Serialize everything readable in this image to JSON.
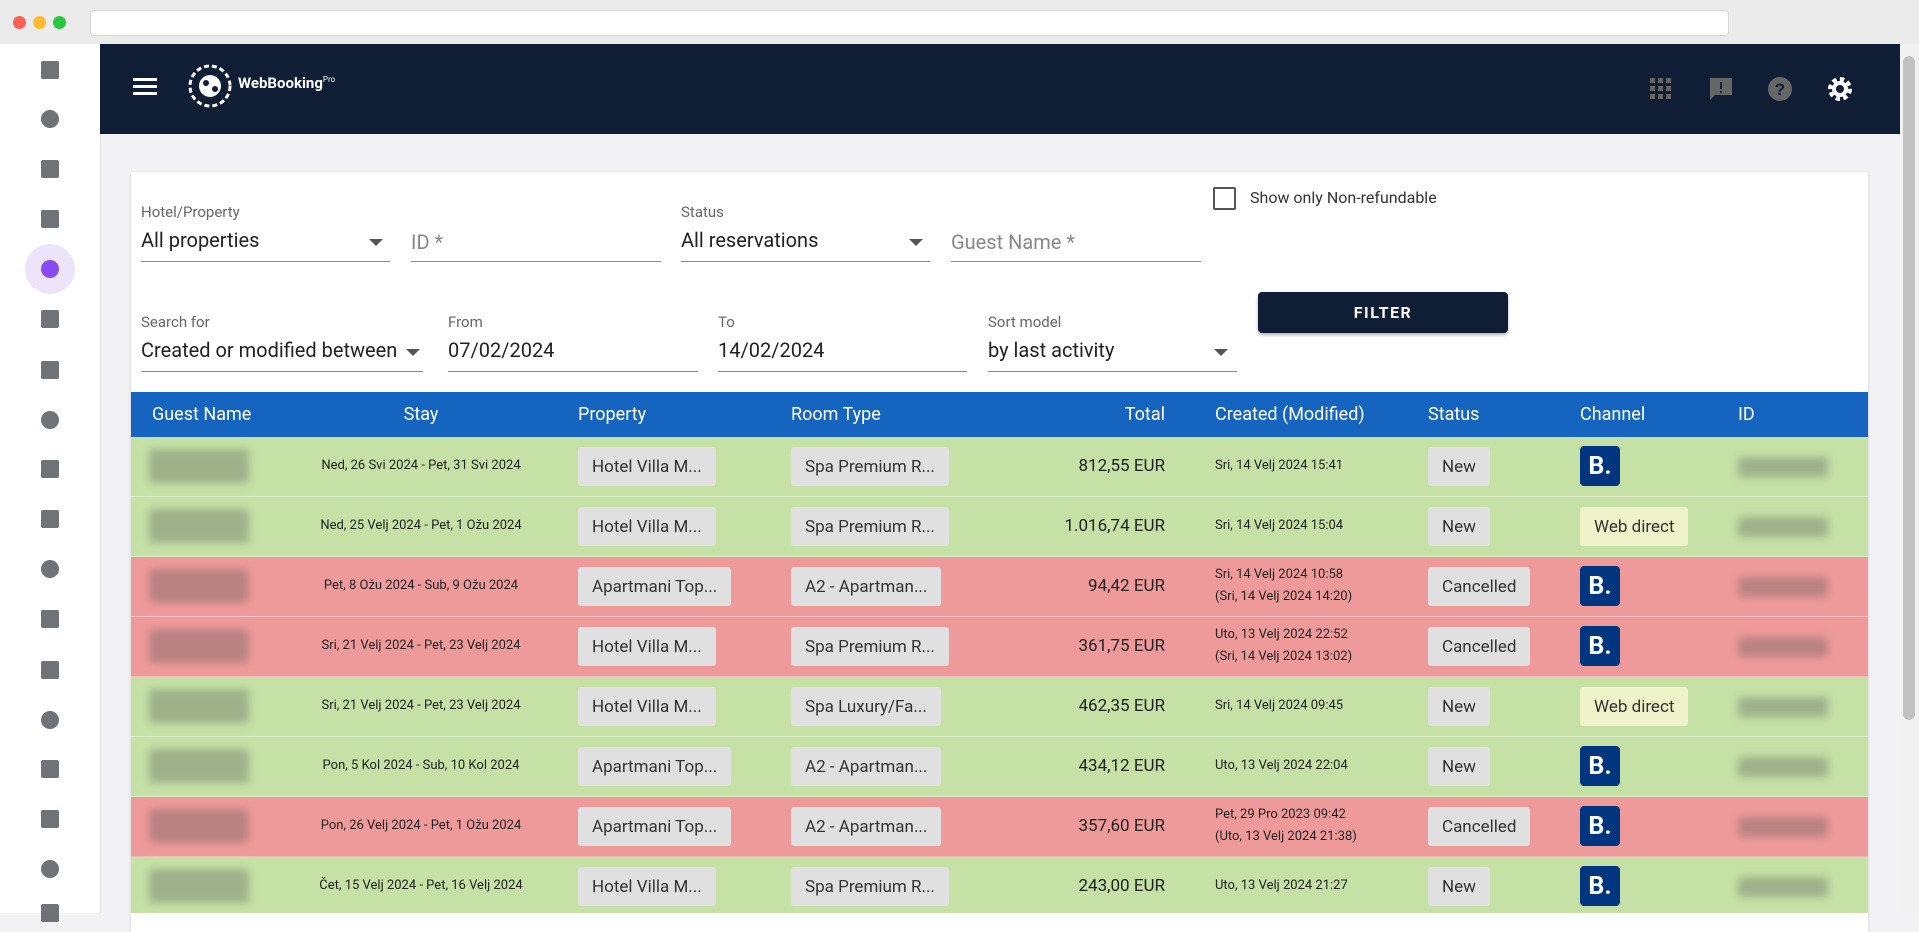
{
  "header": {
    "logo": "WebBooking",
    "logo_sup": "Pro"
  },
  "filters": {
    "hotel": {
      "label": "Hotel/Property",
      "value": "All properties"
    },
    "id": {
      "placeholder": "ID *"
    },
    "status": {
      "label": "Status",
      "value": "All reservations"
    },
    "guest": {
      "placeholder": "Guest Name *"
    },
    "nonrefundable": "Show only Non-refundable",
    "search_for": {
      "label": "Search for",
      "value": "Created or modified between"
    },
    "from": {
      "label": "From",
      "value": "07/02/2024"
    },
    "to": {
      "label": "To",
      "value": "14/02/2024"
    },
    "sort": {
      "label": "Sort model",
      "value": "by last activity"
    },
    "button": "FILTER"
  },
  "table": {
    "columns": [
      "Guest Name",
      "Stay",
      "Property",
      "Room Type",
      "Total",
      "Created (Modified)",
      "Status",
      "Channel",
      "ID"
    ],
    "rows": [
      {
        "stay": "Ned, 26 Svi 2024 - Pet, 31 Svi 2024",
        "property": "Hotel Villa M...",
        "room_type": "Spa Premium R...",
        "total": "812,55 EUR",
        "created": "Sri, 14 Velj 2024 15:41",
        "status": "New",
        "channel": "B.",
        "color": "#c5e1a5"
      },
      {
        "stay": "Ned, 25 Velj 2024 - Pet, 1 Ožu 2024",
        "property": "Hotel Villa M...",
        "room_type": "Spa Premium R...",
        "total": "1.016,74 EUR",
        "created": "Sri, 14 Velj 2024 15:04",
        "status": "New",
        "channel": "Web direct",
        "color": "#c5e1a5"
      },
      {
        "stay": "Pet, 8 Ožu 2024 - Sub, 9 Ožu 2024",
        "property": "Apartmani Top...",
        "room_type": "A2 - Apartman...",
        "total": "94,42 EUR",
        "created": "Sri, 14 Velj 2024 10:58",
        "modified": "(Sri, 14 Velj 2024 14:20)",
        "status": "Cancelled",
        "channel": "B.",
        "color": "#ef9a9a"
      },
      {
        "stay": "Sri, 21 Velj 2024 - Pet, 23 Velj 2024",
        "property": "Hotel Villa M...",
        "room_type": "Spa Premium R...",
        "total": "361,75 EUR",
        "created": "Uto, 13 Velj 2024 22:52",
        "modified": "(Sri, 14 Velj 2024 13:02)",
        "status": "Cancelled",
        "channel": "B.",
        "color": "#ef9a9a"
      },
      {
        "stay": "Sri, 21 Velj 2024 - Pet, 23 Velj 2024",
        "property": "Hotel Villa M...",
        "room_type": "Spa Luxury/Fa...",
        "total": "462,35 EUR",
        "created": "Sri, 14 Velj 2024 09:45",
        "status": "New",
        "channel": "Web direct",
        "color": "#c5e1a5"
      },
      {
        "stay": "Pon, 5 Kol 2024 - Sub, 10 Kol 2024",
        "property": "Apartmani Top...",
        "room_type": "A2 - Apartman...",
        "total": "434,12 EUR",
        "created": "Uto, 13 Velj 2024 22:04",
        "status": "New",
        "channel": "B.",
        "color": "#c5e1a5"
      },
      {
        "stay": "Pon, 26 Velj 2024 - Pet, 1 Ožu 2024",
        "property": "Apartmani Top...",
        "room_type": "A2 - Apartman...",
        "total": "357,60 EUR",
        "created": "Pet, 29 Pro 2023 09:42",
        "modified": "(Uto, 13 Velj 2024 21:38)",
        "status": "Cancelled",
        "channel": "B.",
        "color": "#ef9a9a"
      },
      {
        "stay": "Čet, 15 Velj 2024 - Pet, 16 Velj 2024",
        "property": "Hotel Villa M...",
        "room_type": "Spa Premium R...",
        "total": "243,00 EUR",
        "created": "Uto, 13 Velj 2024 21:27",
        "status": "New",
        "channel": "B.",
        "color": "#c5e1a5"
      }
    ]
  }
}
